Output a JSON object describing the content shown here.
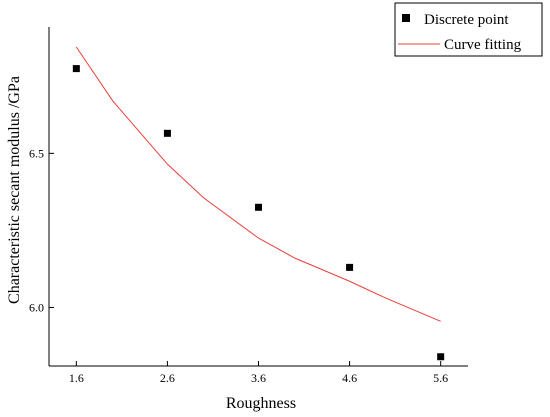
{
  "chart_data": {
    "type": "scatter",
    "xlabel": "Roughness",
    "ylabel": "Characteristic secant modulus /GPa",
    "x_ticks": [
      "1.6",
      "2.6",
      "3.6",
      "4.6",
      "5.6"
    ],
    "y_ticks": [
      "6.0",
      "6.5"
    ],
    "xlim": [
      1.3,
      5.9
    ],
    "ylim": [
      5.81,
      6.91
    ],
    "grid": false,
    "legend_position": "top-right",
    "series": [
      {
        "name": "Discrete point",
        "kind": "scatter",
        "marker": "square",
        "color": "#000000",
        "x": [
          1.6,
          2.6,
          3.6,
          4.6,
          5.6
        ],
        "y": [
          6.775,
          6.565,
          6.325,
          6.13,
          5.84
        ]
      },
      {
        "name": "Curve fitting",
        "kind": "line",
        "color": "#e8403a",
        "x": [
          1.6,
          2.0,
          2.6,
          3.0,
          3.6,
          4.0,
          4.6,
          5.0,
          5.6
        ],
        "y": [
          6.845,
          6.67,
          6.465,
          6.355,
          6.225,
          6.16,
          6.085,
          6.03,
          5.955
        ]
      }
    ]
  }
}
